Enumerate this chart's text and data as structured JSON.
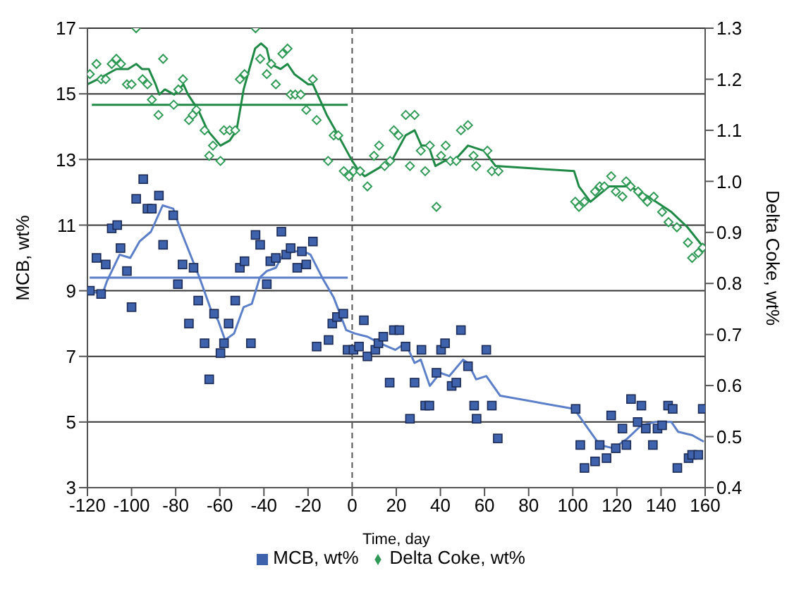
{
  "chart_data": {
    "type": "scatter",
    "xlabel": "Time, day",
    "ylabel": "MCB, wt%",
    "y2label": "Delta Coke, wt%",
    "xlim": [
      -120,
      160
    ],
    "xticks": [
      -120,
      -100,
      -80,
      -60,
      -40,
      -20,
      0,
      20,
      40,
      60,
      80,
      100,
      120,
      140,
      160
    ],
    "ylim": [
      3,
      17
    ],
    "yticks": [
      3,
      5,
      7,
      9,
      11,
      13,
      15,
      17
    ],
    "y2lim": [
      0.4,
      1.3
    ],
    "y2ticks": [
      0.4,
      0.5,
      0.6,
      0.7,
      0.8,
      0.9,
      {
        "value": 1.0,
        "label": "1.0"
      },
      1.1,
      1.2,
      1.3
    ],
    "grid": "y",
    "legend": "bottom",
    "ref_lines": [
      {
        "axis": "x",
        "value": 0,
        "color": "#555555",
        "line_style": "dashed"
      }
    ],
    "series": [
      {
        "name": "MCB, wt%",
        "marker": "square",
        "color": "#3f62ad",
        "x": [
          -118.9,
          -113.8,
          -115.9,
          -111.7,
          -109.0,
          -106.5,
          -105.0,
          -102.1,
          -100.0,
          -97.9,
          -94.7,
          -92.8,
          -90.8,
          -87.6,
          -85.7,
          -81.1,
          -79.0,
          -76.9,
          -74.0,
          -71.9,
          -69.8,
          -66.9,
          -64.8,
          -62.6,
          -59.7,
          -58.1,
          -56.0,
          -53.0,
          -50.9,
          -48.8,
          -45.9,
          -43.8,
          -41.7,
          -38.7,
          -37.1,
          -34.6,
          -32.1,
          -29.9,
          -27.9,
          -24.9,
          -22.8,
          -20.8,
          -17.8,
          -16.1,
          -10.7,
          -9.0,
          -6.9,
          -4.0,
          -2.1,
          0.6,
          3.1,
          5.3,
          6.9,
          10.5,
          11.9,
          14.1,
          17.0,
          18.9,
          21.4,
          24.2,
          26.2,
          28.3,
          31.4,
          33.1,
          35.0,
          38.2,
          40.3,
          42.1,
          45.1,
          47.2,
          49.3,
          52.5,
          55.3,
          56.4,
          60.8,
          63.3,
          66.0,
          101.3,
          103.4,
          105.3,
          110.1,
          112.2,
          115.3,
          117.4,
          119.5,
          122.5,
          124.3,
          126.4,
          129.4,
          131.1,
          133.1,
          136.3,
          138.4,
          140.5,
          143.2,
          145.3,
          147.4,
          152.5,
          154.1,
          156.9,
          158.9
        ],
        "values": [
          9.0,
          8.9,
          10.0,
          9.8,
          10.9,
          11.0,
          10.3,
          9.6,
          8.5,
          11.8,
          12.4,
          11.5,
          11.5,
          11.9,
          10.4,
          11.3,
          9.2,
          9.8,
          8.0,
          9.7,
          8.7,
          7.4,
          6.3,
          8.3,
          7.1,
          7.4,
          8.0,
          8.7,
          9.7,
          9.9,
          7.4,
          10.7,
          10.4,
          9.2,
          9.9,
          10.0,
          10.8,
          10.1,
          10.3,
          9.7,
          10.2,
          9.8,
          10.5,
          7.3,
          7.5,
          8.0,
          8.2,
          8.3,
          7.2,
          7.2,
          7.3,
          8.1,
          7.0,
          7.2,
          7.4,
          7.6,
          6.2,
          7.8,
          7.8,
          7.3,
          5.1,
          6.2,
          7.2,
          5.5,
          5.5,
          6.5,
          7.2,
          7.4,
          6.1,
          6.2,
          7.8,
          6.7,
          5.5,
          5.1,
          7.2,
          5.5,
          4.5,
          5.4,
          4.3,
          3.6,
          3.8,
          4.3,
          3.9,
          5.2,
          4.2,
          4.8,
          4.3,
          5.7,
          5.0,
          5.5,
          4.8,
          4.3,
          4.8,
          4.9,
          5.5,
          5.4,
          3.6,
          3.9,
          4.0,
          4.0,
          5.4
        ]
      },
      {
        "name": "Delta Coke, wt%",
        "marker": "diamond",
        "axis": "y2",
        "color": "#2e9a55",
        "x": [
          -118.9,
          -115.9,
          -113.8,
          -111.7,
          -109.0,
          -106.9,
          -104.8,
          -102.1,
          -100.0,
          -97.9,
          -95.0,
          -92.8,
          -90.8,
          -87.8,
          -85.7,
          -80.9,
          -78.8,
          -76.7,
          -74.0,
          -72.3,
          -70.6,
          -66.9,
          -63.1,
          -64.8,
          -59.7,
          -58.1,
          -55.5,
          -53.0,
          -50.9,
          -48.8,
          -43.8,
          -41.7,
          -38.7,
          -36.7,
          -34.6,
          -31.6,
          -29.3,
          -27.9,
          -25.8,
          -23.3,
          -20.8,
          -17.8,
          -16.1,
          -8.4,
          -6.3,
          -10.9,
          -3.8,
          -1.4,
          0.6,
          3.6,
          6.9,
          9.9,
          12.2,
          14.7,
          18.9,
          17.2,
          21.0,
          24.3,
          28.3,
          26.2,
          31.1,
          33.1,
          35.2,
          38.2,
          40.3,
          42.4,
          44.5,
          47.2,
          49.3,
          52.5,
          55.0,
          56.2,
          61.3,
          63.3,
          66.3,
          101.1,
          102.8,
          105.3,
          110.1,
          112.2,
          114.3,
          117.4,
          119.5,
          122.5,
          124.2,
          126.2,
          129.6,
          131.7,
          133.8,
          136.7,
          140.5,
          143.4,
          147.2,
          152.2,
          154.1,
          156.9,
          158.9
        ],
        "values": [
          1.21,
          1.23,
          1.2,
          1.2,
          1.23,
          1.24,
          1.23,
          1.19,
          1.19,
          1.3,
          1.2,
          1.19,
          1.16,
          1.13,
          1.24,
          1.15,
          1.18,
          1.2,
          1.12,
          1.13,
          1.14,
          1.1,
          1.07,
          1.05,
          1.04,
          1.1,
          1.1,
          1.1,
          1.2,
          1.21,
          1.3,
          1.24,
          1.21,
          1.23,
          1.19,
          1.25,
          1.26,
          1.17,
          1.17,
          1.17,
          1.14,
          1.2,
          1.12,
          1.09,
          1.09,
          1.04,
          1.02,
          1.01,
          1.02,
          1.02,
          0.99,
          1.05,
          1.07,
          1.03,
          1.1,
          1.04,
          1.09,
          1.13,
          1.13,
          1.03,
          1.06,
          1.02,
          1.07,
          0.95,
          1.05,
          1.07,
          1.04,
          1.04,
          1.1,
          1.11,
          1.05,
          1.03,
          1.06,
          1.02,
          1.02,
          0.96,
          0.95,
          0.96,
          0.98,
          0.99,
          0.99,
          1.01,
          0.98,
          0.97,
          1.0,
          0.99,
          0.98,
          0.97,
          0.96,
          0.97,
          0.94,
          0.92,
          0.91,
          0.88,
          0.85,
          0.86,
          0.87
        ]
      },
      {
        "type": "line",
        "color": "#5b7fc9",
        "x": [
          -120,
          -113.2,
          -111.1,
          -105.4,
          -100.6,
          -96.4,
          -91.2,
          -85.9,
          -81.1,
          -77.5,
          -69.2,
          -63.9,
          -60.8,
          -57.6,
          -53.5,
          -49.2,
          -45.5,
          -41.9,
          -38.7,
          -34.6,
          -31.4,
          -26.2,
          -22.0,
          -18.9,
          -13.6,
          -8.4,
          -2.7,
          1.1,
          6.9,
          12.6,
          19.5,
          24.2,
          28.3,
          31.1,
          35.2,
          39.9,
          44.0,
          50.3,
          52.5,
          56.2,
          60.8,
          67.1,
          100.6,
          105.9,
          112.2,
          118.5,
          124.8,
          131.1,
          137.4,
          144.7,
          147.8,
          154.1,
          159.4
        ],
        "values": [
          9.0,
          8.9,
          9.3,
          10.1,
          10.0,
          10.5,
          10.8,
          11.6,
          11.5,
          10.8,
          9.4,
          8.4,
          8.1,
          7.5,
          7.7,
          8.5,
          8.6,
          9.4,
          9.6,
          9.7,
          10.1,
          10.2,
          10.2,
          10.1,
          9.4,
          8.8,
          7.8,
          7.7,
          7.6,
          7.4,
          7.2,
          7.4,
          6.8,
          6.9,
          6.1,
          6.5,
          6.4,
          6.9,
          6.8,
          6.3,
          6.4,
          5.8,
          5.4,
          4.9,
          4.3,
          4.2,
          4.5,
          4.9,
          5.0,
          5.0,
          4.7,
          4.6,
          4.4
        ]
      },
      {
        "type": "line",
        "color": "#5b7fc9",
        "x": [
          -119,
          -2
        ],
        "values": [
          9.4,
          9.4
        ]
      },
      {
        "type": "line",
        "axis": "y2",
        "color": "#1e8a45",
        "x": [
          -120,
          -115.3,
          -106.9,
          -101.6,
          -97.9,
          -95.3,
          -92.2,
          -89.1,
          -87.4,
          -84.9,
          -80.7,
          -76.5,
          -74.4,
          -69.8,
          -65.6,
          -59.7,
          -55.5,
          -52.4,
          -49.2,
          -44.0,
          -41.3,
          -38.7,
          -37.1,
          -32.5,
          -29.3,
          -26.2,
          -19.9,
          -17.8,
          -11.5,
          -6.3,
          0,
          3.1,
          5.7,
          13.6,
          17.9,
          24.2,
          28.3,
          31.4,
          34.6,
          37.7,
          41.9,
          46.2,
          52.5,
          59.7,
          65.0,
          100.6,
          102.8,
          108.0,
          116.4,
          125.8,
          134.2,
          144.7,
          152.0,
          159.4
        ],
        "values": [
          1.19,
          1.2,
          1.22,
          1.22,
          1.23,
          1.22,
          1.22,
          1.19,
          1.17,
          1.18,
          1.17,
          1.19,
          1.17,
          1.14,
          1.1,
          1.07,
          1.08,
          1.1,
          1.18,
          1.26,
          1.27,
          1.26,
          1.23,
          1.22,
          1.23,
          1.21,
          1.19,
          1.19,
          1.13,
          1.09,
          1.04,
          1.02,
          1.01,
          1.03,
          1.04,
          1.09,
          1.1,
          1.07,
          1.07,
          1.03,
          1.04,
          1.04,
          1.07,
          1.06,
          1.03,
          1.02,
          0.99,
          0.96,
          0.99,
          0.99,
          0.97,
          0.94,
          0.91,
          0.87
        ]
      },
      {
        "type": "line",
        "axis": "y2",
        "color": "#1e8a45",
        "x": [
          -118,
          -2
        ],
        "values": [
          1.15,
          1.15
        ]
      }
    ]
  }
}
